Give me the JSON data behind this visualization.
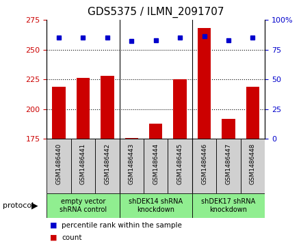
{
  "title": "GDS5375 / ILMN_2091707",
  "samples": [
    "GSM1486440",
    "GSM1486441",
    "GSM1486442",
    "GSM1486443",
    "GSM1486444",
    "GSM1486445",
    "GSM1486446",
    "GSM1486447",
    "GSM1486448"
  ],
  "counts": [
    219,
    226,
    228,
    176,
    188,
    225,
    268,
    192,
    219
  ],
  "percentiles": [
    85,
    85,
    85,
    82,
    83,
    85,
    86,
    83,
    85
  ],
  "groups": [
    {
      "label": "empty vector\nshRNA control",
      "start": 0,
      "end": 3
    },
    {
      "label": "shDEK14 shRNA\nknockdown",
      "start": 3,
      "end": 6
    },
    {
      "label": "shDEK17 shRNA\nknockdown",
      "start": 6,
      "end": 9
    }
  ],
  "bar_color": "#cc0000",
  "dot_color": "#0000cc",
  "left_ylim": [
    175,
    275
  ],
  "left_yticks": [
    175,
    200,
    225,
    250,
    275
  ],
  "right_ylim": [
    0,
    100
  ],
  "right_yticks": [
    0,
    25,
    50,
    75,
    100
  ],
  "grid_values": [
    200,
    225,
    250
  ],
  "sample_bg": "#d0d0d0",
  "group_bg": "#90ee90",
  "plot_bg": "#ffffff"
}
